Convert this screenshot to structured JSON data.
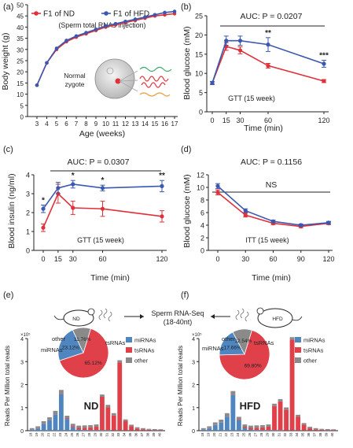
{
  "colors": {
    "nd": "#e0303a",
    "hfd": "#3a58b0",
    "mirna": "#4f86c0",
    "tsrna": "#e0404a",
    "other": "#8a8a8a",
    "sig": "#1a1a1a"
  },
  "chart_data": [
    {
      "panel": "(a)",
      "type": "line",
      "title": "",
      "xlabel": "Age (weeks)",
      "ylabel": "Body weight (g)",
      "x": [
        3,
        4,
        5,
        6,
        7,
        8,
        9,
        10,
        11,
        12,
        13,
        14,
        15,
        16,
        17
      ],
      "ylim": [
        0,
        50
      ],
      "yticks": [
        0,
        5,
        10,
        15,
        20,
        25,
        30,
        35,
        40,
        45,
        50
      ],
      "legend": [
        "F1 of ND",
        "F1 of HFD"
      ],
      "subtitle": "(Sperm total RNAs injection)",
      "inset_label": "Normal zygote",
      "series": [
        {
          "name": "F1 of ND",
          "values": [
            14,
            24,
            30,
            33.5,
            35.5,
            37,
            38.5,
            40,
            41,
            42,
            43,
            44,
            45,
            45.5,
            46
          ]
        },
        {
          "name": "F1 of HFD",
          "values": [
            14,
            24,
            30.5,
            34,
            36,
            37.5,
            39,
            40.5,
            41.5,
            42.5,
            43.5,
            44.5,
            45.5,
            46.5,
            47
          ]
        }
      ]
    },
    {
      "panel": "(b)",
      "type": "line",
      "title": "AUC: P = 0.0207",
      "xlabel": "Time (min)",
      "ylabel": "Blood glucose (mM)",
      "x": [
        0,
        15,
        30,
        60,
        120
      ],
      "xlim": [
        0,
        120
      ],
      "ylim": [
        0,
        25
      ],
      "yticks": [
        0,
        5,
        10,
        15,
        20,
        25
      ],
      "annotation": "GTT (15 week)",
      "series": [
        {
          "name": "F1 of ND",
          "values": [
            7.5,
            17,
            16,
            12,
            8
          ],
          "err": [
            0.4,
            1,
            0.9,
            0.6,
            0.4
          ]
        },
        {
          "name": "F1 of HFD",
          "values": [
            7.5,
            18.5,
            18.5,
            17.5,
            12.5
          ],
          "err": [
            0.4,
            1.2,
            1.2,
            1.8,
            0.9
          ]
        }
      ],
      "significance": [
        {
          "x": 60,
          "label": "**"
        },
        {
          "x": 120,
          "label": "***"
        }
      ]
    },
    {
      "panel": "(c)",
      "type": "line",
      "title": "AUC: P = 0.0307",
      "xlabel": "Time (min)",
      "ylabel": "Blood insulin (ng/ml)",
      "x": [
        0,
        15,
        30,
        60,
        120
      ],
      "xlim": [
        0,
        120
      ],
      "ylim": [
        0,
        4
      ],
      "yticks": [
        0,
        1,
        2,
        3,
        4
      ],
      "annotation": "GTT (15 week)",
      "series": [
        {
          "name": "F1 of ND",
          "values": [
            1.2,
            3.0,
            2.25,
            2.2,
            1.8
          ],
          "err": [
            0.2,
            0.5,
            0.35,
            0.4,
            0.3
          ]
        },
        {
          "name": "F1 of HFD",
          "values": [
            2.2,
            3.3,
            3.5,
            3.3,
            3.4
          ],
          "err": [
            0.2,
            0.3,
            0.2,
            0.15,
            0.3
          ]
        }
      ],
      "significance": [
        {
          "x": 0,
          "label": "*"
        },
        {
          "x": 30,
          "label": "*"
        },
        {
          "x": 60,
          "label": "*"
        },
        {
          "x": 120,
          "label": "**"
        }
      ]
    },
    {
      "panel": "(d)",
      "type": "line",
      "title": "AUC: P = 0.1156",
      "xlabel": "Time (min)",
      "ylabel": "Blood glucose (mM)",
      "x": [
        0,
        30,
        60,
        90,
        120
      ],
      "xlim": [
        0,
        120
      ],
      "ylim": [
        0,
        12
      ],
      "yticks": [
        0,
        2,
        4,
        6,
        8,
        10,
        12
      ],
      "annotation": "ITT (15 week)",
      "bracket_label": "NS",
      "series": [
        {
          "name": "F1 of ND",
          "values": [
            9.2,
            5.6,
            4.3,
            3.8,
            4.3
          ],
          "err": [
            0.4,
            0.3,
            0.2,
            0.2,
            0.2
          ]
        },
        {
          "name": "F1 of HFD",
          "values": [
            10.2,
            6.3,
            4.6,
            4.0,
            4.4
          ],
          "err": [
            0.4,
            0.3,
            0.2,
            0.2,
            0.2
          ]
        }
      ]
    },
    {
      "panel": "(e)",
      "type": "bar",
      "stacked": true,
      "group_label": "ND",
      "ylabel": "Reads Per Million total reads",
      "y_multiplier": "×10⁵",
      "ylim": [
        0,
        4
      ],
      "yticks": [
        0,
        1,
        2,
        3,
        4
      ],
      "categories": [
        "18",
        "19",
        "20",
        "21",
        "22",
        "23",
        "24",
        "25",
        "26",
        "27",
        "28",
        "29",
        "30",
        "31",
        "32",
        "33",
        "34",
        "35",
        "36",
        "37",
        "38",
        "39",
        "40"
      ],
      "series": [
        {
          "name": "miRNAs",
          "values": [
            0.05,
            0.1,
            0.3,
            0.45,
            0.7,
            1.6,
            0.5,
            0.15,
            0.05,
            0.03,
            0.02,
            0.02,
            0.02,
            0.02,
            0.01,
            0.01,
            0.01,
            0.01,
            0.01,
            0.01,
            0.01,
            0.01,
            0.01
          ]
        },
        {
          "name": "tsRNAs",
          "values": [
            0.01,
            0.01,
            0.01,
            0.01,
            0.01,
            0.02,
            0.03,
            0.05,
            0.07,
            0.1,
            0.12,
            0.15,
            1.45,
            1.0,
            0.65,
            2.95,
            0.4,
            0.18,
            0.08,
            0.05,
            0.03,
            0.02,
            0.02
          ]
        },
        {
          "name": "other",
          "values": [
            0.05,
            0.08,
            0.1,
            0.12,
            0.15,
            0.15,
            0.12,
            0.1,
            0.1,
            0.1,
            0.1,
            0.1,
            0.1,
            0.1,
            0.1,
            0.1,
            0.08,
            0.07,
            0.06,
            0.05,
            0.04,
            0.04,
            0.03
          ]
        }
      ],
      "pie": {
        "labels": [
          "tsRNAs",
          "miRNAs",
          "other"
        ],
        "values": [
          65.12,
          23.12,
          11.76
        ],
        "value_labels": [
          "65.12%",
          "23.12%",
          "11.76%"
        ]
      }
    },
    {
      "panel": "(f)",
      "type": "bar",
      "stacked": true,
      "group_label": "HFD",
      "ylabel": "Reads Per Million total reads",
      "y_multiplier": "×10⁵",
      "ylim": [
        0,
        4
      ],
      "yticks": [
        0,
        1,
        2,
        3,
        4
      ],
      "categories": [
        "18",
        "19",
        "20",
        "21",
        "22",
        "23",
        "24",
        "25",
        "26",
        "27",
        "28",
        "29",
        "30",
        "31",
        "32",
        "33",
        "34",
        "35",
        "36",
        "37",
        "38",
        "39",
        "40"
      ],
      "series": [
        {
          "name": "miRNAs",
          "values": [
            0.05,
            0.1,
            0.25,
            0.35,
            0.6,
            1.55,
            0.45,
            0.12,
            0.05,
            0.03,
            0.02,
            0.02,
            0.02,
            0.02,
            0.01,
            0.01,
            0.01,
            0.01,
            0.01,
            0.01,
            0.01,
            0.01,
            0.01
          ]
        },
        {
          "name": "tsRNAs",
          "values": [
            0.01,
            0.01,
            0.01,
            0.01,
            0.01,
            0.02,
            0.03,
            0.05,
            0.07,
            0.1,
            0.12,
            0.15,
            1.05,
            1.25,
            0.9,
            3.95,
            0.6,
            0.25,
            0.1,
            0.05,
            0.03,
            0.02,
            0.02
          ]
        },
        {
          "name": "other",
          "values": [
            0.05,
            0.08,
            0.1,
            0.12,
            0.15,
            0.15,
            0.12,
            0.1,
            0.1,
            0.1,
            0.1,
            0.1,
            0.1,
            0.1,
            0.1,
            0.1,
            0.08,
            0.07,
            0.06,
            0.05,
            0.04,
            0.04,
            0.03
          ]
        }
      ],
      "pie": {
        "labels": [
          "tsRNAs",
          "miRNAs",
          "other"
        ],
        "values": [
          69.8,
          17.66,
          12.54
        ],
        "value_labels": [
          "69.80%",
          "17.66%",
          "12.54%"
        ]
      }
    }
  ],
  "bottom_header": {
    "center_line1": "Sperm RNA-Seq",
    "center_line2": "(18-40nt)",
    "mouse_left": "ND",
    "mouse_right": "HFD"
  }
}
